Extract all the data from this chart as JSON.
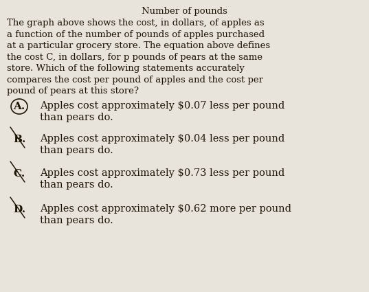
{
  "title": "Number of pounds",
  "background_color": "#e8e4dc",
  "text_color": "#1a1505",
  "body_text": "The graph above shows the cost, in dollars, of apples as\na function of the number of pounds of apples purchased\nat a particular grocery store. The equation above defines\nthe cost C, in dollars, for p pounds of pears at the same\nstore. Which of the following statements accurately\ncompares the cost per pound of apples and the cost per\npound of pears at this store?",
  "options": [
    {
      "label": "A.",
      "text": "Apples cost approximately $0.07 less per pound\nthan pears do.",
      "circled": true
    },
    {
      "label": "B.",
      "text": "Apples cost approximately $0.04 less per pound\nthan pears do.",
      "circled": false
    },
    {
      "label": "C.",
      "text": "Apples cost approximately $0.73 less per pound\nthan pears do.",
      "circled": false
    },
    {
      "label": "D.",
      "text": "Apples cost approximately $0.62 more per pound\nthan pears do.",
      "circled": false
    }
  ],
  "title_fontsize": 9.5,
  "body_fontsize": 9.5,
  "option_fontsize": 10.5,
  "label_fontsize": 11,
  "figsize": [
    5.37,
    4.25
  ],
  "dpi": 100
}
